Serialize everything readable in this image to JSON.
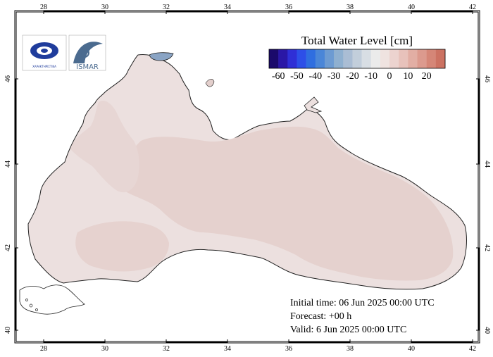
{
  "legend": {
    "title": "Total Water Level [cm]",
    "labels": [
      "-60",
      "-50",
      "-40",
      "-30",
      "-20",
      "-10",
      "0",
      "10",
      "20"
    ],
    "colors": [
      "#1b0a6b",
      "#2a17a6",
      "#2f2fd6",
      "#2d4fe8",
      "#2f6ee0",
      "#4a86d8",
      "#6d9bd2",
      "#8fb0d0",
      "#aabdd4",
      "#c2cedb",
      "#d8dee4",
      "#ebebeb",
      "#efe3e0",
      "#ecd3cf",
      "#e8c2bb",
      "#e2aea4",
      "#dc9a8e",
      "#d58677",
      "#cc7262"
    ]
  },
  "axes": {
    "lon_labels": [
      "28",
      "30",
      "32",
      "34",
      "36",
      "38",
      "40",
      "42"
    ],
    "lat_labels": [
      "40",
      "42",
      "44",
      "46"
    ]
  },
  "info": {
    "initial": "Initial time: 06 Jun 2025 00:00 UTC",
    "forecast": "Forecast: +00 h",
    "valid": "Valid:  6 Jun 2025 00:00 UTC"
  },
  "logos": {
    "left_text": "ΧΑΡΑΚΤΗΡΙΣΤΙΚΑ",
    "right_text": "ISMAR"
  },
  "colors": {
    "sea_base": "#ece0df",
    "sea_high": "#e2cbc8",
    "sea_low": "#efe8e7",
    "coast": "#222222",
    "azov": "#8aa4c4"
  }
}
